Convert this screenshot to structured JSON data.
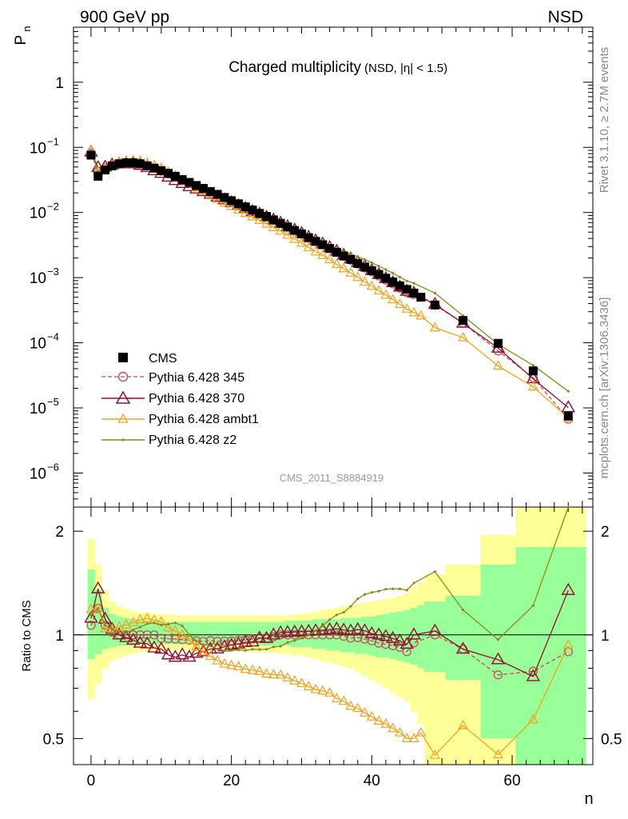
{
  "header": {
    "left": "900 GeV pp",
    "right": "NSD"
  },
  "side_labels": {
    "rivet": "Rivet 3.1.10, ≥ 2.7M events",
    "mcplots": "mcplots.cern.ch [arXiv:1306.3436]"
  },
  "chart_data": [
    {
      "type": "scatter",
      "title_main": "Charged multiplicity",
      "title_sub": "(NSD, |η| < 1.5)",
      "watermark": "CMS_2011_S8884919",
      "ylabel": "P",
      "ylabel_sub": "n",
      "yscale": "log",
      "xlim": [
        -2.5,
        71.5
      ],
      "ylim": [
        3e-07,
        7
      ],
      "yticks": [
        {
          "label": "1",
          "exp": 0
        },
        {
          "label": "10",
          "sup": "−1",
          "exp": -1
        },
        {
          "label": "10",
          "sup": "−2",
          "exp": -2
        },
        {
          "label": "10",
          "sup": "−3",
          "exp": -3
        },
        {
          "label": "10",
          "sup": "−4",
          "exp": -4
        },
        {
          "label": "10",
          "sup": "−5",
          "exp": -5
        },
        {
          "label": "10",
          "sup": "−6",
          "exp": -6
        }
      ],
      "legend": {
        "placement": "lower-left",
        "entries": [
          "CMS",
          "Pythia 6.428 345",
          "Pythia 6.428 370",
          "Pythia 6.428 ambt1",
          "Pythia 6.428 z2"
        ]
      },
      "data_points": {
        "x": [
          0,
          1,
          2,
          3,
          4,
          5,
          6,
          7,
          8,
          9,
          10,
          11,
          12,
          13,
          14,
          15,
          16,
          17,
          18,
          19,
          20,
          21,
          22,
          23,
          24,
          25,
          26,
          27,
          28,
          29,
          30,
          31,
          32,
          33,
          34,
          35,
          36,
          37,
          38,
          39,
          40,
          41,
          42,
          43,
          44,
          45,
          46,
          47,
          49,
          53,
          58,
          63,
          68
        ],
        "y": [
          0.076,
          0.036,
          0.045,
          0.052,
          0.056,
          0.058,
          0.058,
          0.056,
          0.052,
          0.048,
          0.044,
          0.04,
          0.036,
          0.032,
          0.029,
          0.026,
          0.0235,
          0.021,
          0.019,
          0.017,
          0.0152,
          0.0136,
          0.0122,
          0.0109,
          0.0097,
          0.0087,
          0.0077,
          0.0068,
          0.006,
          0.0053,
          0.0047,
          0.0041,
          0.0036,
          0.0032,
          0.0028,
          0.00245,
          0.00215,
          0.0019,
          0.00165,
          0.00145,
          0.00128,
          0.00112,
          0.00098,
          0.00086,
          0.00075,
          0.00066,
          0.00058,
          0.0005,
          0.00038,
          0.00022,
          9.8e-05,
          3.7e-05,
          7.5e-06
        ]
      },
      "series": [
        {
          "name": "Pythia 6.428 345",
          "color": "#bf4f5a",
          "marker": "circle",
          "dashed": true,
          "x": [
            0,
            1,
            2,
            3,
            4,
            5,
            6,
            7,
            8,
            9,
            10,
            11,
            12,
            13,
            14,
            15,
            16,
            17,
            18,
            19,
            20,
            21,
            22,
            23,
            24,
            25,
            26,
            27,
            28,
            29,
            30,
            31,
            32,
            33,
            34,
            35,
            36,
            37,
            38,
            39,
            40,
            41,
            42,
            43,
            44,
            45,
            46,
            49,
            53,
            58,
            63,
            68
          ],
          "y": [
            0.081,
            0.043,
            0.048,
            0.053,
            0.056,
            0.058,
            0.058,
            0.056,
            0.052,
            0.048,
            0.043,
            0.039,
            0.035,
            0.031,
            0.028,
            0.025,
            0.0225,
            0.0202,
            0.0182,
            0.0163,
            0.0146,
            0.0131,
            0.0118,
            0.0106,
            0.0095,
            0.0085,
            0.0076,
            0.0068,
            0.006,
            0.0053,
            0.0047,
            0.0041,
            0.0036,
            0.0032,
            0.0028,
            0.00245,
            0.00213,
            0.00186,
            0.00162,
            0.00141,
            0.00123,
            0.00106,
            0.00092,
            0.0008,
            0.00069,
            0.00059,
            0.00055,
            0.00038,
            0.0002,
            7.5e-05,
            2.9e-05,
            6.7e-06
          ]
        },
        {
          "name": "Pythia 6.428 370",
          "color": "#8f1030",
          "marker": "triangle-large",
          "dashed": false,
          "x": [
            0,
            1,
            2,
            3,
            4,
            5,
            6,
            7,
            8,
            9,
            10,
            11,
            12,
            13,
            14,
            15,
            16,
            17,
            18,
            19,
            20,
            21,
            22,
            23,
            24,
            25,
            26,
            27,
            28,
            29,
            30,
            31,
            32,
            33,
            34,
            35,
            36,
            37,
            38,
            39,
            40,
            41,
            42,
            43,
            44,
            45,
            46,
            49,
            53,
            58,
            63,
            68
          ],
          "y": [
            0.085,
            0.049,
            0.05,
            0.054,
            0.056,
            0.057,
            0.056,
            0.053,
            0.049,
            0.044,
            0.04,
            0.035,
            0.031,
            0.028,
            0.025,
            0.023,
            0.021,
            0.0191,
            0.0173,
            0.0157,
            0.0142,
            0.0128,
            0.0116,
            0.0104,
            0.0095,
            0.0085,
            0.0077,
            0.0069,
            0.0061,
            0.0054,
            0.0048,
            0.0042,
            0.0037,
            0.0033,
            0.0029,
            0.00255,
            0.00222,
            0.00195,
            0.00171,
            0.00149,
            0.00129,
            0.00112,
            0.00097,
            0.00084,
            0.00072,
            0.00062,
            0.00058,
            0.00039,
            0.0002,
            8.3e-05,
            2.8e-05,
            1.01e-05
          ]
        },
        {
          "name": "Pythia 6.428 ambt1",
          "color": "#f2a320",
          "marker": "triangle",
          "dashed": false,
          "x": [
            0,
            1,
            2,
            3,
            4,
            5,
            6,
            7,
            8,
            9,
            10,
            11,
            12,
            13,
            14,
            15,
            16,
            17,
            18,
            19,
            20,
            21,
            22,
            23,
            24,
            25,
            26,
            27,
            28,
            29,
            30,
            31,
            32,
            33,
            34,
            35,
            36,
            37,
            38,
            39,
            40,
            41,
            42,
            43,
            44,
            45,
            46,
            47,
            49,
            53,
            58,
            63,
            68
          ],
          "y": [
            0.09,
            0.043,
            0.047,
            0.054,
            0.059,
            0.062,
            0.063,
            0.062,
            0.058,
            0.053,
            0.048,
            0.042,
            0.037,
            0.032,
            0.028,
            0.024,
            0.021,
            0.0182,
            0.016,
            0.014,
            0.0124,
            0.011,
            0.0097,
            0.0086,
            0.0076,
            0.0067,
            0.0059,
            0.0052,
            0.0045,
            0.0039,
            0.0034,
            0.0029,
            0.0025,
            0.0022,
            0.0019,
            0.0016,
            0.00138,
            0.00118,
            0.00101,
            0.00086,
            0.00074,
            0.00063,
            0.00054,
            0.00046,
            0.00039,
            0.00033,
            0.00029,
            0.00026,
            0.00017,
            0.00012,
            4.4e-05,
            2.1e-05,
            7e-06
          ]
        },
        {
          "name": "Pythia 6.428 z2",
          "color": "#8a8a1e",
          "marker": "dot",
          "dashed": false,
          "x": [
            0,
            1,
            2,
            3,
            4,
            5,
            6,
            7,
            8,
            9,
            10,
            11,
            12,
            13,
            14,
            15,
            16,
            17,
            18,
            19,
            20,
            21,
            22,
            23,
            24,
            25,
            26,
            27,
            28,
            29,
            30,
            31,
            32,
            33,
            34,
            35,
            36,
            37,
            38,
            39,
            40,
            41,
            42,
            43,
            44,
            45,
            46,
            49,
            53,
            58,
            63,
            68
          ],
          "y": [
            0.087,
            0.043,
            0.048,
            0.054,
            0.057,
            0.059,
            0.06,
            0.059,
            0.056,
            0.052,
            0.047,
            0.043,
            0.039,
            0.034,
            0.029,
            0.025,
            0.022,
            0.0195,
            0.0173,
            0.0153,
            0.0137,
            0.0123,
            0.011,
            0.0099,
            0.0088,
            0.0079,
            0.0071,
            0.0063,
            0.0057,
            0.0051,
            0.0046,
            0.0041,
            0.0037,
            0.0034,
            0.0031,
            0.0028,
            0.0025,
            0.0023,
            0.0021,
            0.0019,
            0.0017,
            0.0015,
            0.00133,
            0.00117,
            0.00102,
            0.00089,
            0.00082,
            0.00058,
            0.00026,
            9.5e-05,
            4.5e-05,
            1.8e-05
          ]
        }
      ]
    },
    {
      "type": "line",
      "ylabel": "Ratio to CMS",
      "yscale": "log",
      "xlabel": "n",
      "xlim": [
        -2.5,
        71.5
      ],
      "ylim": [
        0.42,
        2.35
      ],
      "xticks": [
        0,
        20,
        40,
        60
      ],
      "yticks": [
        0.5,
        1,
        2
      ],
      "band_edges": [
        -0.5,
        0.5,
        1.5,
        2.5,
        3.5,
        4.5,
        5.5,
        6.5,
        7.5,
        8.5,
        9.5,
        10.5,
        11.5,
        12.5,
        13.5,
        14.5,
        15.5,
        16.5,
        17.5,
        18.5,
        19.5,
        20.5,
        21.5,
        22.5,
        23.5,
        24.5,
        25.5,
        26.5,
        27.5,
        28.5,
        29.5,
        30.5,
        31.5,
        32.5,
        33.5,
        34.5,
        35.5,
        36.5,
        37.5,
        38.5,
        39.5,
        40.5,
        41.5,
        42.5,
        43.5,
        44.5,
        45.5,
        46.5,
        47.5,
        50.5,
        55.5,
        60.5,
        65.5,
        70.5
      ],
      "band_yellow_hi": [
        1.9,
        1.6,
        1.35,
        1.25,
        1.21,
        1.19,
        1.17,
        1.16,
        1.16,
        1.15,
        1.15,
        1.15,
        1.14,
        1.14,
        1.14,
        1.14,
        1.14,
        1.14,
        1.14,
        1.14,
        1.14,
        1.14,
        1.14,
        1.14,
        1.14,
        1.14,
        1.14,
        1.14,
        1.14,
        1.15,
        1.15,
        1.16,
        1.17,
        1.18,
        1.19,
        1.2,
        1.21,
        1.22,
        1.23,
        1.24,
        1.25,
        1.26,
        1.27,
        1.28,
        1.3,
        1.32,
        1.38,
        1.42,
        1.5,
        1.6,
        1.95,
        2.4,
        2.4
      ],
      "band_yellow_lo": [
        0.65,
        0.72,
        0.8,
        0.84,
        0.86,
        0.87,
        0.88,
        0.89,
        0.89,
        0.9,
        0.9,
        0.9,
        0.9,
        0.9,
        0.9,
        0.9,
        0.9,
        0.9,
        0.9,
        0.9,
        0.9,
        0.9,
        0.89,
        0.89,
        0.89,
        0.89,
        0.89,
        0.88,
        0.88,
        0.87,
        0.87,
        0.86,
        0.85,
        0.84,
        0.83,
        0.82,
        0.81,
        0.8,
        0.78,
        0.76,
        0.74,
        0.72,
        0.7,
        0.68,
        0.66,
        0.64,
        0.6,
        0.55,
        0.4,
        0.4,
        0.4,
        0.4,
        0.4
      ],
      "band_green_hi": [
        1.55,
        1.35,
        1.2,
        1.15,
        1.13,
        1.12,
        1.11,
        1.1,
        1.1,
        1.1,
        1.09,
        1.09,
        1.09,
        1.09,
        1.09,
        1.09,
        1.09,
        1.09,
        1.09,
        1.09,
        1.09,
        1.09,
        1.09,
        1.09,
        1.09,
        1.09,
        1.09,
        1.09,
        1.1,
        1.1,
        1.1,
        1.1,
        1.11,
        1.11,
        1.11,
        1.11,
        1.12,
        1.12,
        1.12,
        1.13,
        1.13,
        1.14,
        1.15,
        1.16,
        1.17,
        1.18,
        1.2,
        1.22,
        1.25,
        1.3,
        1.6,
        1.8,
        1.8
      ],
      "band_green_lo": [
        0.85,
        0.88,
        0.91,
        0.92,
        0.93,
        0.93,
        0.93,
        0.94,
        0.94,
        0.94,
        0.94,
        0.94,
        0.94,
        0.94,
        0.94,
        0.94,
        0.94,
        0.94,
        0.94,
        0.94,
        0.94,
        0.94,
        0.94,
        0.94,
        0.93,
        0.93,
        0.93,
        0.93,
        0.93,
        0.92,
        0.92,
        0.92,
        0.91,
        0.91,
        0.9,
        0.9,
        0.89,
        0.89,
        0.88,
        0.88,
        0.87,
        0.86,
        0.86,
        0.85,
        0.84,
        0.83,
        0.82,
        0.8,
        0.78,
        0.74,
        0.5,
        0.4,
        0.4
      ]
    }
  ]
}
